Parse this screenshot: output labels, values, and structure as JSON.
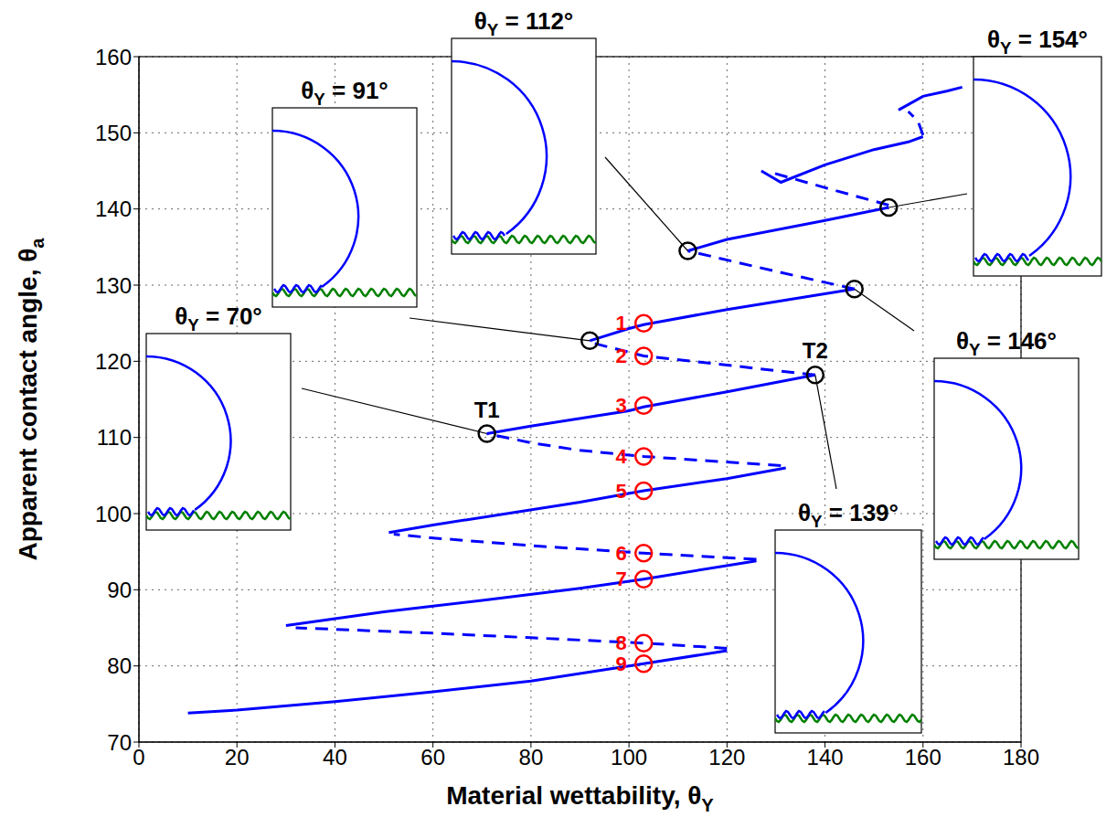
{
  "chart_data": {
    "type": "line",
    "xlabel": "Material wettability, θY",
    "ylabel": "Apparent contact angle, θa",
    "xlim": [
      0,
      180
    ],
    "ylim": [
      70,
      160
    ],
    "xticks": [
      0,
      20,
      40,
      60,
      80,
      100,
      120,
      140,
      160,
      180
    ],
    "yticks": [
      70,
      80,
      90,
      100,
      110,
      120,
      130,
      140,
      150,
      160
    ],
    "grid": true,
    "series": [
      {
        "type": "line",
        "color": "#0000ff",
        "line_style": "solid",
        "x": [
          10,
          20,
          40,
          60,
          80,
          100,
          120
        ],
        "values": [
          73.8,
          74.2,
          75.3,
          76.6,
          78.0,
          80.0,
          82.0
        ]
      },
      {
        "type": "line",
        "color": "#0000ff",
        "line_style": "dashed",
        "x": [
          120,
          103,
          80,
          60,
          40,
          32
        ],
        "values": [
          82.3,
          83.0,
          83.7,
          84.3,
          84.8,
          85.0
        ]
      },
      {
        "type": "line",
        "color": "#0000ff",
        "line_style": "solid",
        "x": [
          30,
          40,
          50,
          70,
          90,
          103,
          126
        ],
        "values": [
          85.3,
          86.2,
          87.1,
          88.6,
          90.2,
          91.4,
          93.8
        ]
      },
      {
        "type": "line",
        "color": "#0000ff",
        "line_style": "dashed",
        "x": [
          126,
          103,
          80,
          60,
          52
        ],
        "values": [
          94.0,
          94.8,
          95.8,
          96.8,
          97.3
        ]
      },
      {
        "type": "line",
        "color": "#0000ff",
        "line_style": "solid",
        "x": [
          51,
          60,
          70,
          90,
          103,
          120,
          132
        ],
        "values": [
          97.5,
          98.5,
          99.5,
          101.5,
          103.0,
          104.6,
          106.0
        ]
      },
      {
        "type": "line",
        "color": "#0000ff",
        "line_style": "dashed",
        "x": [
          131,
          103,
          90,
          80,
          71
        ],
        "values": [
          106.3,
          107.5,
          108.3,
          109.3,
          110.5
        ]
      },
      {
        "type": "line",
        "color": "#0000ff",
        "line_style": "solid",
        "x": [
          71,
          80,
          100,
          103,
          120,
          138
        ],
        "values": [
          110.5,
          111.5,
          113.5,
          114.0,
          116.0,
          118.2
        ]
      },
      {
        "type": "line",
        "color": "#0000ff",
        "line_style": "dashed",
        "x": [
          138,
          120,
          103,
          92
        ],
        "values": [
          118.2,
          119.5,
          120.7,
          122.5
        ]
      },
      {
        "type": "line",
        "color": "#0000ff",
        "line_style": "solid",
        "x": [
          92,
          100,
          103,
          120,
          146
        ],
        "values": [
          122.7,
          124.3,
          124.8,
          126.8,
          129.5
        ]
      },
      {
        "type": "line",
        "color": "#0000ff",
        "line_style": "dashed",
        "x": [
          146,
          130,
          112
        ],
        "values": [
          129.5,
          131.8,
          134.5
        ]
      },
      {
        "type": "line",
        "color": "#0000ff",
        "line_style": "solid",
        "x": [
          112,
          120,
          140,
          153
        ],
        "values": [
          134.5,
          136.0,
          138.5,
          140.2
        ]
      },
      {
        "type": "line",
        "color": "#0000ff",
        "line_style": "dashed",
        "x": [
          153,
          140,
          129
        ],
        "values": [
          140.5,
          142.8,
          144.8
        ]
      },
      {
        "type": "line",
        "color": "#0000ff",
        "line_style": "solid",
        "x": [
          127,
          131,
          140,
          150,
          157,
          160
        ],
        "values": [
          145.0,
          143.5,
          145.8,
          147.8,
          148.8,
          149.5
        ]
      },
      {
        "type": "line",
        "color": "#0000ff",
        "line_style": "dashed",
        "x": [
          160,
          159,
          157
        ],
        "values": [
          149.7,
          151.5,
          152.8
        ]
      },
      {
        "type": "line",
        "color": "#0000ff",
        "line_style": "solid",
        "x": [
          155,
          160,
          165,
          168
        ],
        "values": [
          153.0,
          154.8,
          155.5,
          156.0
        ]
      },
      {
        "type": "scatter",
        "color": "#ff0000",
        "marker": "circle",
        "x": [
          103,
          103,
          103,
          103,
          103,
          103,
          103,
          103,
          103
        ],
        "values": [
          125,
          120.7,
          114.2,
          107.5,
          103,
          94.8,
          91.4,
          83,
          80.3
        ],
        "labels": [
          "1",
          "2",
          "3",
          "4",
          "5",
          "6",
          "7",
          "8",
          "9"
        ]
      },
      {
        "type": "scatter",
        "color": "#000000",
        "marker": "circle",
        "x": [
          71,
          92,
          112,
          153,
          146,
          138
        ],
        "values": [
          110.5,
          122.7,
          134.5,
          140.2,
          129.5,
          118.2
        ]
      }
    ],
    "annotations": [
      {
        "text": "T1",
        "x": 71,
        "y": 110.5
      },
      {
        "text": "T2",
        "x": 138,
        "y": 118.2
      }
    ],
    "insets": [
      {
        "title": "θY = 70°",
        "x": 71,
        "y": 110.5
      },
      {
        "title": "θY = 91°",
        "x": 92,
        "y": 122.7
      },
      {
        "title": "θY = 112°",
        "x": 112,
        "y": 134.5
      },
      {
        "title": "θY = 154°",
        "x": 153,
        "y": 140.2
      },
      {
        "title": "θY = 146°",
        "x": 146,
        "y": 129.5
      },
      {
        "title": "θY = 139°",
        "x": 138,
        "y": 118.2
      }
    ]
  }
}
